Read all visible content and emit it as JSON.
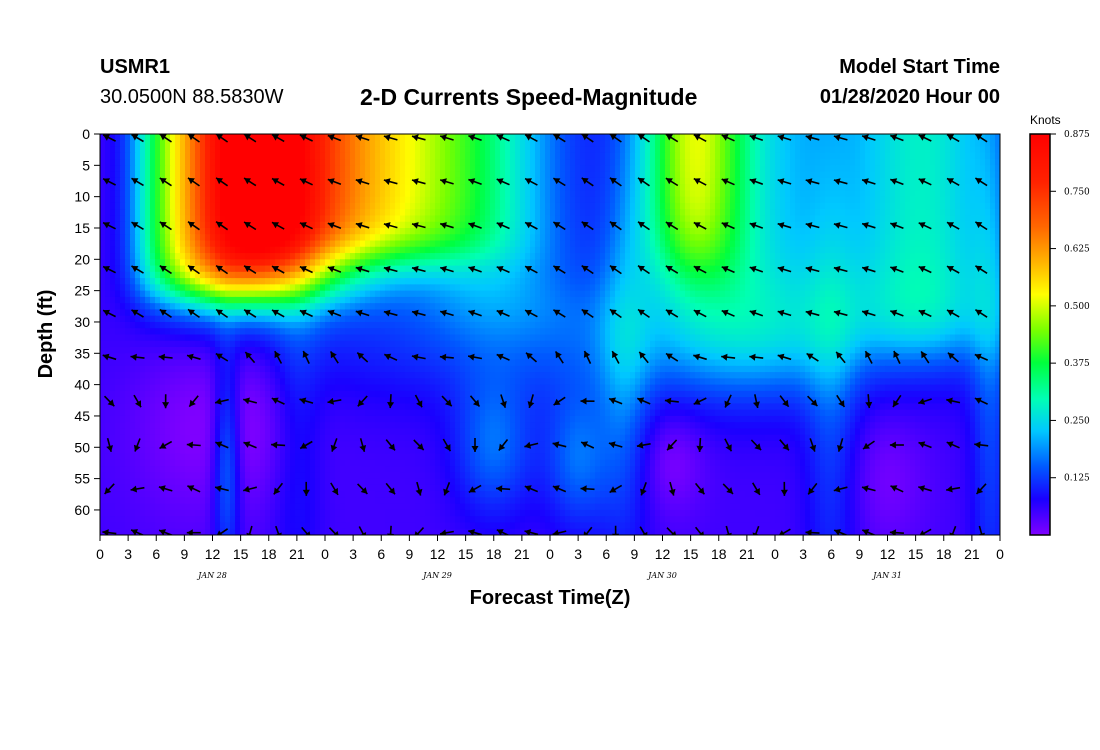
{
  "header": {
    "station": "USMR1",
    "coords": "30.0500N 88.5830W",
    "title": "2-D Currents Speed-Magnitude",
    "start_label": "Model Start Time",
    "start_value": "01/28/2020 Hour 00"
  },
  "chart_data": {
    "type": "heatmap",
    "title": "2-D Currents Speed-Magnitude",
    "xlabel": "Forecast Time(Z)",
    "ylabel": "Depth (ft)",
    "x_tick_labels": [
      "0",
      "3",
      "6",
      "9",
      "12",
      "15",
      "18",
      "21",
      "0",
      "3",
      "6",
      "9",
      "12",
      "15",
      "18",
      "21",
      "0",
      "3",
      "6",
      "9",
      "12",
      "15",
      "18",
      "21",
      "0",
      "3",
      "6",
      "9",
      "12",
      "15",
      "18",
      "21",
      "0"
    ],
    "x_range_hours": [
      0,
      96
    ],
    "day_labels": [
      {
        "label": "JAN 28",
        "hour": 12
      },
      {
        "label": "JAN 29",
        "hour": 36
      },
      {
        "label": "JAN 30",
        "hour": 60
      },
      {
        "label": "JAN 31",
        "hour": 84
      }
    ],
    "y_tick_labels": [
      "0",
      "5",
      "10",
      "15",
      "20",
      "25",
      "30",
      "35",
      "40",
      "45",
      "50",
      "55",
      "60"
    ],
    "y_range_ft": [
      0,
      64
    ],
    "y_inverted": true,
    "colorbar": {
      "unit": "Knots",
      "range": [
        0,
        0.875
      ],
      "tick_labels": [
        "0.875",
        "0.750",
        "0.625",
        "0.500",
        "0.375",
        "0.250",
        "0.125"
      ],
      "colors": [
        "#7f00ff",
        "#1a00ff",
        "#0059ff",
        "#00c8ff",
        "#00ffb4",
        "#00ff3c",
        "#78ff00",
        "#ffff00",
        "#ffb400",
        "#ff6600",
        "#ff2200",
        "#ff0000"
      ]
    },
    "arrow_rows_ft": [
      0,
      7,
      14,
      21,
      28,
      35,
      42,
      49,
      56,
      63
    ],
    "arrow_interval_hours": 3
  }
}
